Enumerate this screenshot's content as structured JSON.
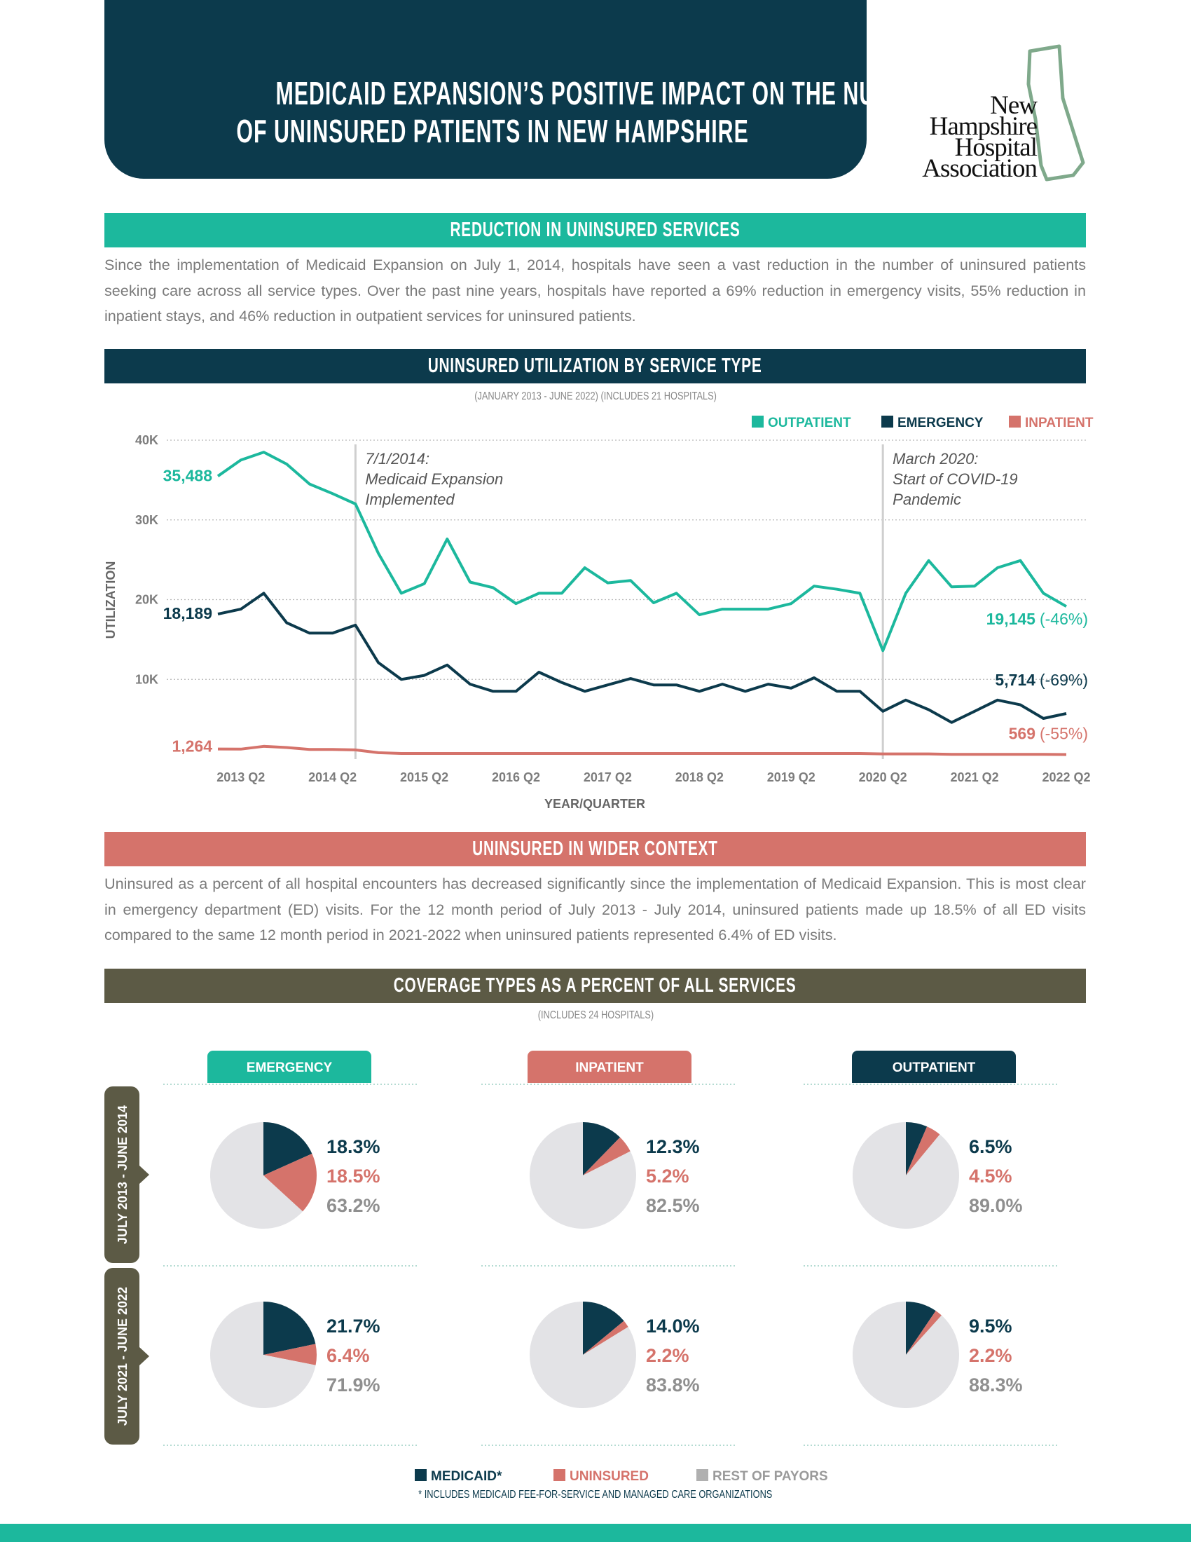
{
  "header": {
    "title": [
      "MEDICAID EXPANSION’S POSITIVE IMPACT ON THE NUMBER",
      "OF UNINSURED PATIENTS IN NEW HAMPSHIRE"
    ],
    "logo": [
      "New",
      "Hampshire",
      "Hospital",
      "Association"
    ]
  },
  "sections": [
    {
      "heading": "REDUCTION IN UNINSURED SERVICES",
      "text": "Since the implementation of Medicaid Expansion on July 1, 2014, hospitals have seen a vast reduction in the number of uninsured patients seeking care across all service types. Over the past nine years, hospitals have reported a 69% reduction in emergency visits, 55% reduction in inpatient stays, and 46% reduction in outpatient services for uninsured patients."
    },
    {
      "heading": "UNINSURED IN WIDER CONTEXT",
      "text": "Uninsured as a percent of all hospital encounters has decreased significantly since the implementation of Medicaid Expansion. This is most clear in emergency department (ED) visits. For the 12 month period of July 2013 - July 2014, uninsured patients made up 18.5% of all ED visits compared to the same 12 month period in 2021-2022 when uninsured patients represented 6.4% of ED visits."
    }
  ],
  "coverage": {
    "heading": "COVERAGE TYPES AS A PERCENT OF ALL SERVICES",
    "subtitle": "(INCLUDES 24 HOSPITALS)",
    "columns": [
      "EMERGENCY",
      "INPATIENT",
      "OUTPATIENT"
    ],
    "column_colors": [
      "#1cb89d",
      "#d5736b",
      "#0c3a4c"
    ],
    "rows": [
      "JULY 2013 - JUNE 2014",
      "JULY 2021 - JUNE 2022"
    ],
    "footnote": "* INCLUDES MEDICAID FEE-FOR-SERVICE AND MANAGED CARE ORGANIZATIONS"
  },
  "chart_data": [
    {
      "type": "line",
      "heading": "UNINSURED UTILIZATION BY SERVICE TYPE",
      "subtitle": "(JANUARY 2013 - JUNE 2022) (INCLUDES 21 HOSPITALS)",
      "x_label": "YEAR/QUARTER",
      "y_label": "UTILIZATION",
      "categories": [
        null,
        "2013 Q2",
        null,
        null,
        null,
        "2014 Q2",
        null,
        null,
        null,
        "2015 Q2",
        null,
        null,
        null,
        "2016 Q2",
        null,
        null,
        null,
        "2017 Q2",
        null,
        null,
        null,
        "2018 Q2",
        null,
        null,
        null,
        "2019 Q2",
        null,
        null,
        null,
        "2020 Q2",
        null,
        null,
        null,
        "2021 Q2",
        null,
        null,
        null,
        "2022 Q2"
      ],
      "ylim": [
        0,
        40000
      ],
      "yticks": [
        {
          "value": 10000,
          "label": "10K"
        },
        {
          "value": 20000,
          "label": "20K"
        },
        {
          "value": 30000,
          "label": "30K"
        },
        {
          "value": 40000,
          "label": "40K"
        }
      ],
      "grid": true,
      "legend": "top-right",
      "series": [
        {
          "name": "OUTPATIENT",
          "color": "#1cb89d",
          "values": [
            35488,
            37500,
            38500,
            37000,
            34500,
            33300,
            32000,
            25800,
            20800,
            22000,
            27600,
            22200,
            21500,
            19500,
            20800,
            20800,
            24000,
            22100,
            22400,
            19600,
            20800,
            18100,
            18800,
            18800,
            18800,
            19500,
            21700,
            21300,
            20800,
            13600,
            20800,
            24900,
            21600,
            21700,
            24000,
            24900,
            20800,
            19145
          ],
          "value_labels": [
            "35,488",
            null,
            null,
            null,
            null,
            null,
            null,
            null,
            null,
            null,
            null,
            null,
            null,
            null,
            null,
            null,
            null,
            null,
            null,
            null,
            null,
            null,
            null,
            null,
            null,
            null,
            null,
            null,
            null,
            null,
            null,
            null,
            null,
            null,
            null,
            null,
            null,
            "19,145"
          ],
          "change_label": "(-46%)"
        },
        {
          "name": "EMERGENCY",
          "color": "#0c3a4c",
          "values": [
            18189,
            18800,
            20800,
            17100,
            15800,
            15800,
            16800,
            12100,
            10000,
            10500,
            11800,
            9400,
            8500,
            8500,
            10900,
            9600,
            8500,
            9300,
            10100,
            9300,
            9300,
            8500,
            9400,
            8500,
            9400,
            8900,
            10200,
            8500,
            8500,
            6000,
            7400,
            6200,
            4600,
            6000,
            7400,
            6800,
            5100,
            5714
          ],
          "value_labels": [
            "18,189",
            null,
            null,
            null,
            null,
            null,
            null,
            null,
            null,
            null,
            null,
            null,
            null,
            null,
            null,
            null,
            null,
            null,
            null,
            null,
            null,
            null,
            null,
            null,
            null,
            null,
            null,
            null,
            null,
            null,
            null,
            null,
            null,
            null,
            null,
            null,
            null,
            "5,714"
          ],
          "change_label": "(-69%)"
        },
        {
          "name": "INPATIENT",
          "color": "#d5736b",
          "values": [
            1264,
            1250,
            1600,
            1450,
            1200,
            1200,
            1150,
            800,
            700,
            700,
            700,
            700,
            700,
            700,
            700,
            700,
            700,
            700,
            700,
            700,
            700,
            700,
            700,
            700,
            700,
            700,
            700,
            700,
            700,
            650,
            650,
            650,
            600,
            600,
            600,
            600,
            600,
            569
          ],
          "value_labels": [
            "1,264",
            null,
            null,
            null,
            null,
            null,
            null,
            null,
            null,
            null,
            null,
            null,
            null,
            null,
            null,
            null,
            null,
            null,
            null,
            null,
            null,
            null,
            null,
            null,
            null,
            null,
            null,
            null,
            null,
            null,
            null,
            null,
            null,
            null,
            null,
            null,
            null,
            "569"
          ],
          "change_label": "(-55%)"
        }
      ],
      "annotations": [
        {
          "index": 6,
          "lines": [
            "7/1/2014:",
            "Medicaid Expansion",
            "Implemented"
          ]
        },
        {
          "index": 29,
          "lines": [
            "March 2020:",
            "Start of COVID-19",
            "Pandemic"
          ]
        }
      ]
    },
    {
      "type": "pie",
      "categories": [
        "MEDICAID*",
        "UNINSURED",
        "REST OF PAYORS"
      ],
      "colors": [
        "#0c3a4c",
        "#d5736b",
        "#e3e3e6"
      ],
      "values": [
        18.3,
        18.5,
        63.2
      ],
      "value_labels": [
        "18.3%",
        "18.5%",
        "63.2%"
      ]
    },
    {
      "type": "pie",
      "categories": [
        "MEDICAID*",
        "UNINSURED",
        "REST OF PAYORS"
      ],
      "colors": [
        "#0c3a4c",
        "#d5736b",
        "#e3e3e6"
      ],
      "values": [
        12.3,
        5.2,
        82.5
      ],
      "value_labels": [
        "12.3%",
        "5.2%",
        "82.5%"
      ]
    },
    {
      "type": "pie",
      "categories": [
        "MEDICAID*",
        "UNINSURED",
        "REST OF PAYORS"
      ],
      "colors": [
        "#0c3a4c",
        "#d5736b",
        "#e3e3e6"
      ],
      "values": [
        6.5,
        4.5,
        89.0
      ],
      "value_labels": [
        "6.5%",
        "4.5%",
        "89.0%"
      ]
    },
    {
      "type": "pie",
      "categories": [
        "MEDICAID*",
        "UNINSURED",
        "REST OF PAYORS"
      ],
      "colors": [
        "#0c3a4c",
        "#d5736b",
        "#e3e3e6"
      ],
      "values": [
        21.7,
        6.4,
        71.9
      ],
      "value_labels": [
        "21.7%",
        "6.4%",
        "71.9%"
      ]
    },
    {
      "type": "pie",
      "categories": [
        "MEDICAID*",
        "UNINSURED",
        "REST OF PAYORS"
      ],
      "colors": [
        "#0c3a4c",
        "#d5736b",
        "#e3e3e6"
      ],
      "values": [
        14.0,
        2.2,
        83.8
      ],
      "value_labels": [
        "14.0%",
        "2.2%",
        "83.8%"
      ]
    },
    {
      "type": "pie",
      "categories": [
        "MEDICAID*",
        "UNINSURED",
        "REST OF PAYORS"
      ],
      "colors": [
        "#0c3a4c",
        "#d5736b",
        "#e3e3e6"
      ],
      "values": [
        9.5,
        2.2,
        88.3
      ],
      "value_labels": [
        "9.5%",
        "2.2%",
        "88.3%"
      ]
    }
  ]
}
